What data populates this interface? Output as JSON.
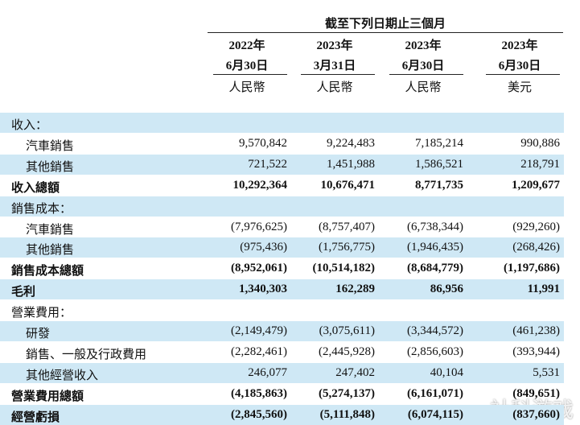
{
  "header": {
    "title": "截至下列日期止三個月",
    "columns": [
      {
        "year": "2022年",
        "date": "6月30日",
        "currency": "人民幣"
      },
      {
        "year": "2023年",
        "date": "3月31日",
        "currency": "人民幣"
      },
      {
        "year": "2023年",
        "date": "6月30日",
        "currency": "人民幣"
      },
      {
        "year": "2023年",
        "date": "6月30日",
        "currency": "美元"
      }
    ]
  },
  "table": {
    "rows": [
      {
        "label": "收入：",
        "values": [],
        "bold": false,
        "indent": false
      },
      {
        "label": "汽車銷售",
        "values": [
          "9,570,842",
          "9,224,483",
          "7,185,214",
          "990,886"
        ],
        "bold": false,
        "indent": true
      },
      {
        "label": "其他銷售",
        "values": [
          "721,522",
          "1,451,988",
          "1,586,521",
          "218,791"
        ],
        "bold": false,
        "indent": true
      },
      {
        "label": "收入總額",
        "values": [
          "10,292,364",
          "10,676,471",
          "8,771,735",
          "1,209,677"
        ],
        "bold": true,
        "indent": false
      },
      {
        "label": "銷售成本：",
        "values": [],
        "bold": false,
        "indent": false
      },
      {
        "label": "汽車銷售",
        "values": [
          "(7,976,625)",
          "(8,757,407)",
          "(6,738,344)",
          "(929,260)"
        ],
        "bold": false,
        "indent": true
      },
      {
        "label": "其他銷售",
        "values": [
          "(975,436)",
          "(1,756,775)",
          "(1,946,435)",
          "(268,426)"
        ],
        "bold": false,
        "indent": true
      },
      {
        "label": "銷售成本總額",
        "values": [
          "(8,952,061)",
          "(10,514,182)",
          "(8,684,779)",
          "(1,197,686)"
        ],
        "bold": true,
        "indent": false
      },
      {
        "label": "毛利",
        "values": [
          "1,340,303",
          "162,289",
          "86,956",
          "11,991"
        ],
        "bold": true,
        "indent": false
      },
      {
        "label": "營業費用：",
        "values": [],
        "bold": false,
        "indent": false
      },
      {
        "label": "研發",
        "values": [
          "(2,149,479)",
          "(3,075,611)",
          "(3,344,572)",
          "(461,238)"
        ],
        "bold": false,
        "indent": true
      },
      {
        "label": "銷售、一般及行政費用",
        "values": [
          "(2,282,461)",
          "(2,445,928)",
          "(2,856,603)",
          "(393,944)"
        ],
        "bold": false,
        "indent": true
      },
      {
        "label": "其他經營收入",
        "values": [
          "246,077",
          "247,402",
          "40,104",
          "5,531"
        ],
        "bold": false,
        "indent": true
      },
      {
        "label": "營業費用總額",
        "values": [
          "(4,185,863)",
          "(5,274,137)",
          "(6,161,071)",
          "(849,651)"
        ],
        "bold": true,
        "indent": false
      },
      {
        "label": "經營虧損",
        "values": [
          "(2,845,560)",
          "(5,111,848)",
          "(6,074,115)",
          "(837,660)"
        ],
        "bold": true,
        "indent": false
      }
    ]
  },
  "watermark": "社科游戏"
}
